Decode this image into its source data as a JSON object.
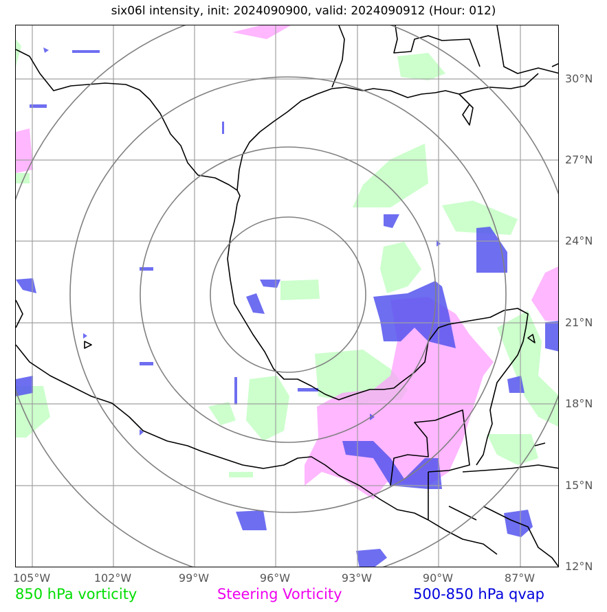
{
  "title": "six06l intensity, init: 2024090900, valid: 2024090912 (Hour: 012)",
  "lat_labels": [
    "30°N",
    "27°N",
    "24°N",
    "21°N",
    "18°N",
    "15°N",
    "12°N"
  ],
  "lon_labels": [
    "105°W",
    "102°W",
    "99°W",
    "96°W",
    "93°W",
    "90°W",
    "87°W"
  ],
  "legend": {
    "vorticity_850": "850 hPa vorticity",
    "steering_vorticity": "Steering Vorticity",
    "qvap_500_850": "500-850 hPa qvap"
  },
  "colors": {
    "vorticity_850": "#ccffcc",
    "steering_vorticity": "#ff99ff",
    "qvap_500_850": "#5555ee",
    "overlap": "#7733ff",
    "grid": "#999999",
    "rings": "#777777",
    "coast": "#000000"
  },
  "map": {
    "extent": {
      "lon_min": -105.6,
      "lon_max": -85.6,
      "lat_min": 12,
      "lat_max": 32
    },
    "grid_lons": [
      -105,
      -102,
      -99,
      -96,
      -93,
      -90,
      -87
    ],
    "grid_lats": [
      12,
      15,
      18,
      21,
      24,
      27,
      30
    ],
    "storm_center": {
      "lon": -96,
      "lat": 22
    },
    "range_rings_deg": [
      2.9,
      5.5,
      8.2,
      10.8
    ]
  }
}
